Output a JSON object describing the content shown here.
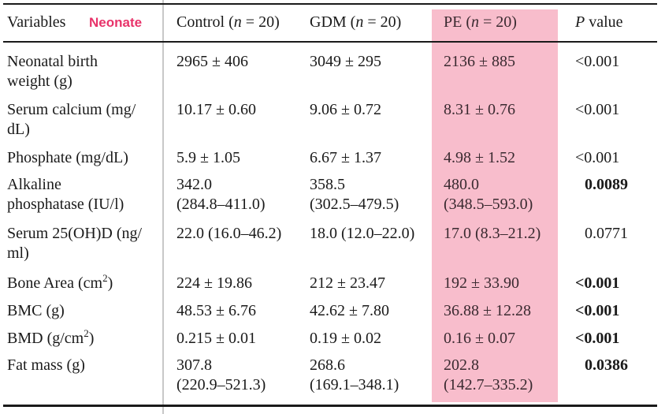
{
  "header": {
    "variables": "Variables",
    "badge": "Neonate",
    "control": {
      "name": "Control",
      "n": "n",
      "eq": "= 20"
    },
    "gdm": {
      "name": "GDM",
      "n": "n",
      "eq": "= 20"
    },
    "pe": {
      "name": "PE",
      "n": "n",
      "eq": "= 20"
    },
    "pvalue": {
      "p": "P",
      "rest": "value"
    }
  },
  "rows": [
    {
      "variable": [
        "Neonatal birth",
        "weight (g)"
      ],
      "control": [
        "2965 ± 406"
      ],
      "gdm": [
        "3049 ± 295"
      ],
      "pe": [
        "2136 ± 885"
      ],
      "p": "<0.001",
      "p_bold": false
    },
    {
      "variable": [
        "Serum calcium (mg/",
        "dL)"
      ],
      "control": [
        "10.17 ± 0.60"
      ],
      "gdm": [
        "9.06 ± 0.72"
      ],
      "pe": [
        "8.31 ± 0.76"
      ],
      "p": "<0.001",
      "p_bold": false
    },
    {
      "variable": [
        "Phosphate (mg/dL)"
      ],
      "control": [
        "5.9 ± 1.05"
      ],
      "gdm": [
        "6.67 ± 1.37"
      ],
      "pe": [
        "4.98 ± 1.52"
      ],
      "p": "<0.001",
      "p_bold": false
    },
    {
      "variable": [
        "Alkaline",
        "phosphatase (IU/l)"
      ],
      "control": [
        "342.0",
        "(284.8–411.0)"
      ],
      "gdm": [
        "358.5",
        "(302.5–479.5)"
      ],
      "pe": [
        "480.0",
        "(348.5–593.0)"
      ],
      "p": "0.0089",
      "p_bold": true
    },
    {
      "variable": [
        "Serum 25(OH)D (ng/",
        "ml)"
      ],
      "control": [
        "22.0 (16.0–46.2)"
      ],
      "gdm": [
        "18.0 (12.0–22.0)"
      ],
      "pe": [
        "17.0 (8.3–21.2)"
      ],
      "p": "0.0771",
      "p_bold": false
    },
    {
      "variable": [
        "Bone Area (cm",
        "2",
        ")"
      ],
      "control": [
        "224 ± 19.86"
      ],
      "gdm": [
        "212 ± 23.47"
      ],
      "pe": [
        "192 ± 33.90"
      ],
      "p": "<0.001",
      "p_bold": true
    },
    {
      "variable": [
        "BMC (g)"
      ],
      "control": [
        "48.53 ± 6.76"
      ],
      "gdm": [
        "42.62 ± 7.80"
      ],
      "pe": [
        "36.88 ± 12.28"
      ],
      "p": "<0.001",
      "p_bold": true
    },
    {
      "variable": [
        "BMD (g/cm",
        "2",
        ")"
      ],
      "control": [
        "0.215 ± 0.01"
      ],
      "gdm": [
        "0.19 ± 0.02"
      ],
      "pe": [
        "0.16 ± 0.07"
      ],
      "p": "<0.001",
      "p_bold": true
    },
    {
      "variable": [
        "Fat mass (g)"
      ],
      "control": [
        "307.8",
        "(220.9–521.3)"
      ],
      "gdm": [
        "268.6",
        "(169.1–348.1)"
      ],
      "pe": [
        "202.8",
        "(142.7–335.2)"
      ],
      "p": "0.0386",
      "p_bold": true
    }
  ],
  "colors": {
    "pe_highlight": "#f8bdcc",
    "badge": "#e8336a"
  }
}
